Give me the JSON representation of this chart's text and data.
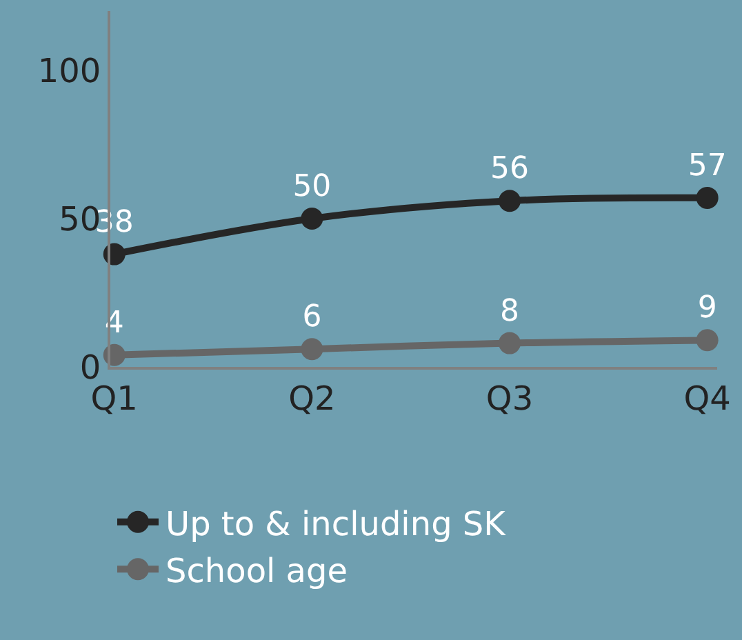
{
  "chart_data": {
    "type": "line",
    "categories": [
      "Q1",
      "Q2",
      "Q3",
      "Q4"
    ],
    "series": [
      {
        "name": "Up to & including SK",
        "color": "#262626",
        "values": [
          38,
          50,
          56,
          57
        ]
      },
      {
        "name": "School age",
        "color": "#666666",
        "values": [
          4,
          6,
          8,
          9
        ]
      }
    ],
    "ylim": [
      0,
      120
    ],
    "yticks": [
      0,
      50,
      100
    ],
    "data_labels": true,
    "grid": false,
    "legend": "bottom",
    "marker": "circle",
    "line_style": "solid"
  }
}
